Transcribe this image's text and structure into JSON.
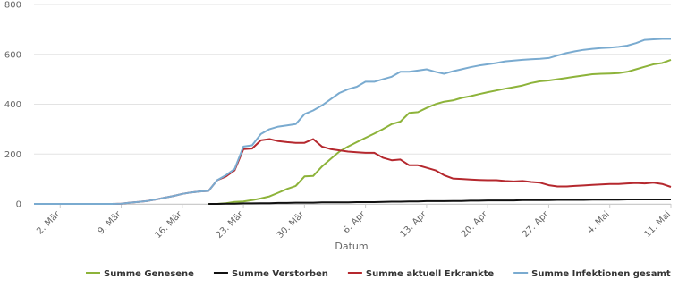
{
  "chart_data": {
    "type": "line",
    "x_label": "Datum",
    "categories": [
      null,
      null,
      null,
      "2. Mär",
      null,
      null,
      null,
      null,
      null,
      null,
      "9. Mär",
      null,
      null,
      null,
      null,
      null,
      null,
      "16. Mär",
      null,
      null,
      null,
      null,
      null,
      null,
      "23. Mär",
      null,
      null,
      null,
      null,
      null,
      null,
      "30. Mär",
      null,
      null,
      null,
      null,
      null,
      null,
      "6. Apr",
      null,
      null,
      null,
      null,
      null,
      null,
      "13. Apr",
      null,
      null,
      null,
      null,
      null,
      null,
      "20. Apr",
      null,
      null,
      null,
      null,
      null,
      null,
      "27. Apr",
      null,
      null,
      null,
      null,
      null,
      null,
      "4. Mai",
      null,
      null,
      null,
      null,
      null,
      null,
      "11. Mai"
    ],
    "ylim": [
      0,
      800
    ],
    "yticks": [
      0,
      200,
      400,
      600,
      800
    ],
    "grid": true,
    "series": [
      {
        "name": "Summe Genesene",
        "color": "#8db33a",
        "values": [
          null,
          null,
          null,
          null,
          null,
          null,
          null,
          null,
          null,
          null,
          null,
          null,
          null,
          null,
          null,
          null,
          null,
          null,
          null,
          null,
          0,
          0,
          3,
          8,
          10,
          15,
          22,
          30,
          45,
          60,
          72,
          110,
          112,
          150,
          180,
          210,
          230,
          248,
          265,
          282,
          300,
          320,
          330,
          365,
          368,
          385,
          400,
          410,
          415,
          425,
          432,
          440,
          448,
          455,
          462,
          468,
          475,
          485,
          492,
          495,
          500,
          505,
          510,
          515,
          520,
          522,
          523,
          525,
          530,
          540,
          550,
          560,
          565,
          578
        ]
      },
      {
        "name": "Summe Verstorben",
        "color": "#111111",
        "values": [
          null,
          null,
          null,
          null,
          null,
          null,
          null,
          null,
          null,
          null,
          null,
          null,
          null,
          null,
          null,
          null,
          null,
          null,
          null,
          null,
          0,
          0,
          1,
          1,
          2,
          2,
          3,
          3,
          4,
          4,
          5,
          5,
          5,
          6,
          6,
          6,
          6,
          7,
          7,
          7,
          8,
          9,
          9,
          10,
          10,
          11,
          11,
          11,
          12,
          12,
          13,
          13,
          14,
          14,
          14,
          14,
          15,
          15,
          15,
          15,
          16,
          16,
          16,
          16,
          17,
          17,
          17,
          17,
          18,
          18,
          18,
          18,
          18,
          18
        ]
      },
      {
        "name": "Summe aktuell Erkrankte",
        "color": "#b5282e",
        "values": [
          0,
          0,
          0,
          0,
          0,
          0,
          0,
          0,
          0,
          0,
          1,
          5,
          8,
          12,
          18,
          25,
          32,
          40,
          46,
          50,
          52,
          95,
          110,
          135,
          220,
          222,
          255,
          260,
          252,
          248,
          245,
          245,
          260,
          230,
          220,
          215,
          210,
          207,
          205,
          205,
          185,
          175,
          178,
          155,
          155,
          145,
          135,
          115,
          102,
          100,
          98,
          96,
          95,
          95,
          92,
          90,
          92,
          88,
          85,
          75,
          70,
          70,
          72,
          74,
          76,
          78,
          80,
          80,
          82,
          84,
          82,
          85,
          80,
          68
        ]
      },
      {
        "name": "Summe Infektionen gesamt",
        "color": "#7aabd0",
        "values": [
          0,
          0,
          0,
          0,
          0,
          0,
          0,
          0,
          0,
          0,
          1,
          5,
          8,
          12,
          18,
          25,
          32,
          40,
          46,
          50,
          52,
          95,
          115,
          140,
          230,
          235,
          280,
          300,
          310,
          315,
          320,
          360,
          375,
          395,
          420,
          445,
          460,
          470,
          490,
          490,
          500,
          510,
          530,
          530,
          535,
          540,
          530,
          522,
          532,
          540,
          548,
          555,
          560,
          565,
          572,
          575,
          578,
          580,
          582,
          585,
          595,
          605,
          612,
          618,
          622,
          625,
          627,
          630,
          635,
          645,
          658,
          660,
          662,
          662
        ]
      }
    ]
  }
}
